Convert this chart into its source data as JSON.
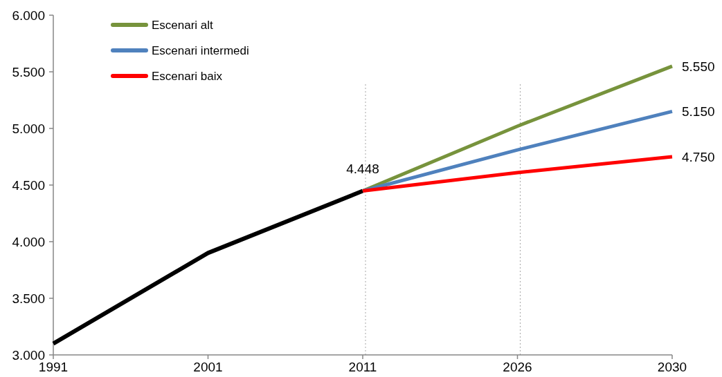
{
  "chart_data": {
    "type": "line",
    "categories": [
      "1991",
      "2001",
      "2011",
      "2026",
      "2030"
    ],
    "series": [
      {
        "color": "#000000",
        "values": [
          3100,
          3900,
          4448,
          null,
          null
        ],
        "value_labels": [
          null,
          null,
          "4.448",
          null,
          null
        ]
      },
      {
        "name": "Escenari alt",
        "color": "#77933c",
        "values": [
          null,
          null,
          4448,
          5020,
          5550
        ],
        "value_labels": [
          null,
          null,
          null,
          null,
          "5.550"
        ]
      },
      {
        "name": "Escenari intermedi",
        "color": "#4f81bd",
        "values": [
          null,
          null,
          4448,
          4810,
          5150
        ],
        "value_labels": [
          null,
          null,
          null,
          null,
          "5.150"
        ]
      },
      {
        "name": "Escenari baix",
        "color": "#ff0000",
        "values": [
          null,
          null,
          4448,
          4610,
          4750
        ],
        "value_labels": [
          null,
          null,
          null,
          null,
          "4.750"
        ]
      }
    ],
    "ylim": [
      3000,
      6000
    ],
    "yticks": [
      {
        "value": 3000,
        "label": "3.000"
      },
      {
        "value": 3500,
        "label": "3.500"
      },
      {
        "value": 4000,
        "label": "4.000"
      },
      {
        "value": 4500,
        "label": "4.500"
      },
      {
        "value": 5000,
        "label": "5.000"
      },
      {
        "value": 5500,
        "label": "5.500"
      },
      {
        "value": 6000,
        "label": "6.000"
      }
    ],
    "ref_lines": [
      {
        "axis": "x",
        "value": "2011",
        "color": "#a6a6a6",
        "line_style": "dotted"
      },
      {
        "axis": "x",
        "value": "2026",
        "color": "#a6a6a6",
        "line_style": "dotted"
      }
    ],
    "legend": "top left",
    "grid": false,
    "marker": "none",
    "line_style": "solid"
  }
}
